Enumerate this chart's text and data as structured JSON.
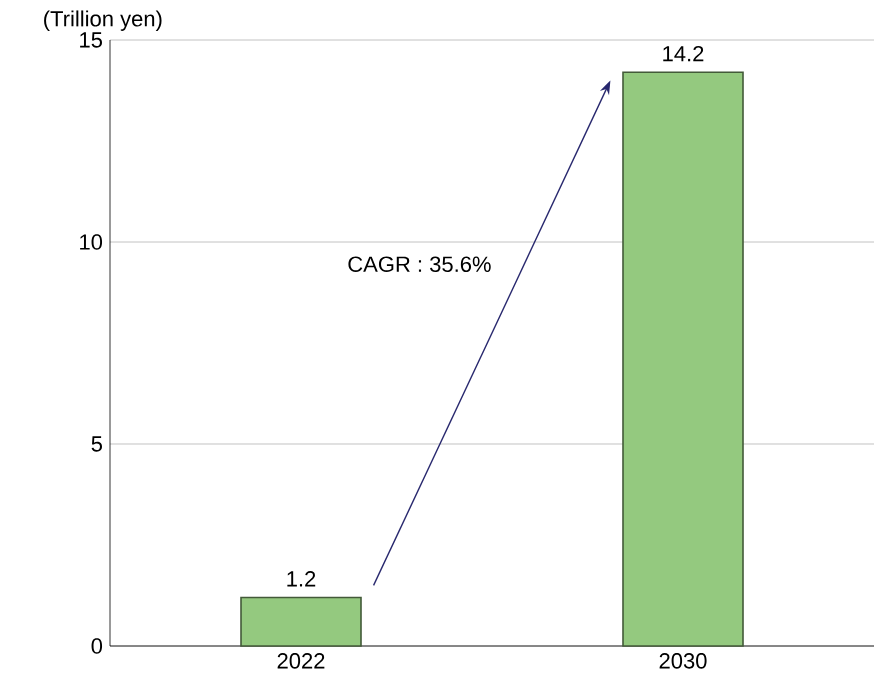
{
  "chart_data": {
    "type": "bar",
    "ylabel": "(Trillion yen)",
    "categories": [
      "2022",
      "2030"
    ],
    "values": [
      1.2,
      14.2
    ],
    "color": "#94c97f",
    "ylim": [
      0,
      15
    ],
    "yticks": [
      0,
      5,
      10,
      15
    ],
    "grid": "y",
    "data_labels": true,
    "annotations": [
      "CAGR : 35.6%"
    ]
  }
}
